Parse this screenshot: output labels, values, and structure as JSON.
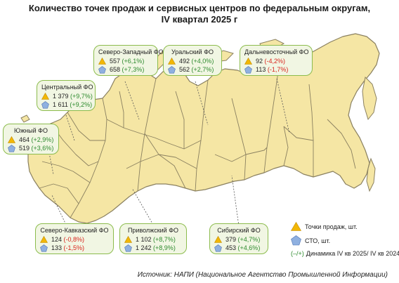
{
  "title": {
    "line1": "Количество точек продаж и сервисных центров по федеральным округам,",
    "line2": "IV квартал 2025 г"
  },
  "colors": {
    "land": "#f5e6a4",
    "border": "#8a8060",
    "box_bg": "#f1f6e3",
    "box_border": "#8cbc4d",
    "triangle": "#f2b705",
    "pentagon": "#8fb0e0",
    "positive": "#2e8b2e",
    "negative": "#d9251d"
  },
  "icons": {
    "sales_points": "triangle-icon",
    "service_centers": "pentagon-icon"
  },
  "districts": [
    {
      "id": "sz",
      "name": "Северо-Западный ФО",
      "sales": "557",
      "sales_change": "(+6,1%)",
      "sales_trend": "pos",
      "service": "658",
      "service_change": "(+7,3%)",
      "service_trend": "pos"
    },
    {
      "id": "ural",
      "name": "Уральский ФО",
      "sales": "492",
      "sales_change": "(+4,0%)",
      "sales_trend": "pos",
      "service": "562",
      "service_change": "(+2,7%)",
      "service_trend": "pos"
    },
    {
      "id": "dv",
      "name": "Дальневосточный ФО",
      "sales": "92",
      "sales_change": "(-4,2%)",
      "sales_trend": "neg",
      "service": "113",
      "service_change": "(-1,7%)",
      "service_trend": "neg"
    },
    {
      "id": "center",
      "name": "Центральный ФО",
      "sales": "1 379",
      "sales_change": "(+9,7%)",
      "sales_trend": "pos",
      "service": "1 611",
      "service_change": "(+9,2%)",
      "service_trend": "pos"
    },
    {
      "id": "south",
      "name": "Южный ФО",
      "sales": "464",
      "sales_change": "(+2,9%)",
      "sales_trend": "pos",
      "service": "519",
      "service_change": "(+3,6%)",
      "service_trend": "pos"
    },
    {
      "id": "skfo",
      "name": "Северо-Кавказский ФО",
      "sales": "124",
      "sales_change": "(-0,8%)",
      "sales_trend": "neg",
      "service": "133",
      "service_change": "(-1,5%)",
      "service_trend": "neg"
    },
    {
      "id": "privolzh",
      "name": "Приволжский ФО",
      "sales": "1 102",
      "sales_change": "(+8,7%)",
      "sales_trend": "pos",
      "service": "1 242",
      "service_change": "(+8,9%)",
      "service_trend": "pos"
    },
    {
      "id": "sib",
      "name": "Сибирский ФО",
      "sales": "379",
      "sales_change": "(+4,7%)",
      "sales_trend": "pos",
      "service": "453",
      "service_change": "(+4,6%)",
      "service_trend": "pos"
    }
  ],
  "legend": {
    "sales_label": "Точки продаж, шт.",
    "service_label": "СТО, шт.",
    "dynamics_symbol": "(–/+)",
    "dynamics_label": "Динамика IV кв 2025/ IV кв 2024"
  },
  "source": "Источник: НАПИ (Национальное Агентство Промышленной Информации)"
}
